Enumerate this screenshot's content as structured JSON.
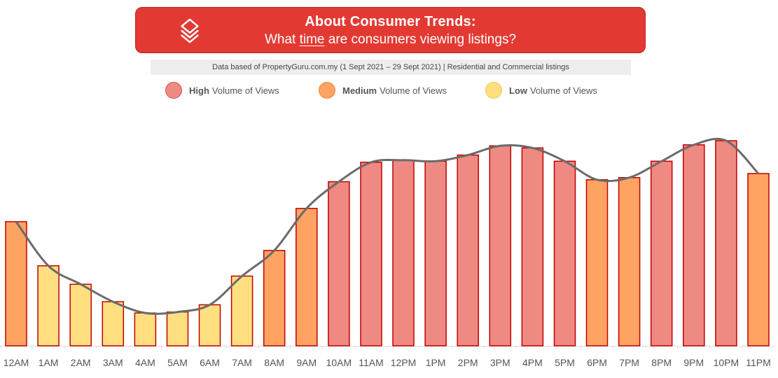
{
  "header": {
    "title": "About Consumer Trends:",
    "subtitle_pre": "What ",
    "subtitle_emph": "time",
    "subtitle_post": " are consumers viewing listings?",
    "logo_icon": "propertyguru-logo-icon"
  },
  "source_note": "Data based of PropertyGuru.com.my (1 Sept 2021 – 29 Sept 2021) | Residential and Commercial listings",
  "legend": [
    {
      "level": "high",
      "bold": "High",
      "rest": "Volume of Views",
      "color": "#ef8a82",
      "border": "#d9534f"
    },
    {
      "level": "medium",
      "bold": "Medium",
      "rest": "Volume of Views",
      "color": "#ffa363",
      "border": "#ee8a3c"
    },
    {
      "level": "low",
      "bold": "Low",
      "rest": "Volume of Views",
      "color": "#ffdf80",
      "border": "#f2c94c"
    }
  ],
  "chart_data": {
    "type": "bar",
    "categories": [
      "12AM",
      "1AM",
      "2AM",
      "3AM",
      "4AM",
      "5AM",
      "6AM",
      "7AM",
      "8AM",
      "9AM",
      "10AM",
      "11AM",
      "12PM",
      "1PM",
      "2PM",
      "3PM",
      "4PM",
      "5PM",
      "6PM",
      "7PM",
      "8PM",
      "9PM",
      "10PM",
      "11PM"
    ],
    "values": [
      60.5,
      39,
      30,
      21.5,
      16,
      16.5,
      20,
      34,
      46.5,
      67,
      80,
      89.5,
      90.5,
      90,
      93,
      97.5,
      96.5,
      90,
      81,
      82,
      90,
      98,
      100,
      84
    ],
    "levels": [
      "medium",
      "low",
      "low",
      "low",
      "low",
      "low",
      "low",
      "low",
      "medium",
      "medium",
      "high",
      "high",
      "high",
      "high",
      "high",
      "high",
      "high",
      "high",
      "medium",
      "medium",
      "high",
      "high",
      "high",
      "medium"
    ],
    "trendline": [
      60.5,
      39,
      30,
      21.5,
      16,
      16.5,
      20,
      34,
      46.5,
      67,
      80,
      89.5,
      90.5,
      90,
      93,
      97.5,
      96.5,
      90,
      81,
      82,
      90,
      98,
      100,
      84
    ],
    "colors": {
      "high": "#ef8a82",
      "medium": "#ffa363",
      "low": "#ffdf80",
      "bar_border": "#c00000",
      "line": "#6b6b6b"
    },
    "ylim": [
      0,
      100
    ],
    "title": "",
    "xlabel": "",
    "ylabel": "",
    "grid": false
  }
}
